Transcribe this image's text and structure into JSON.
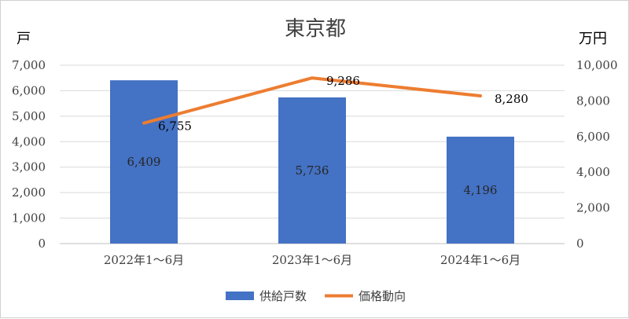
{
  "chart_data": {
    "type": "bar+line",
    "title": "東京都",
    "left_axis_unit": "戸",
    "right_axis_unit": "万円",
    "categories": [
      "2022年1～6月",
      "2023年1～6月",
      "2024年1～6月"
    ],
    "left_ylim": [
      0,
      7000
    ],
    "left_ticks": [
      "7,000",
      "6,000",
      "5,000",
      "4,000",
      "3,000",
      "2,000",
      "1,000",
      "0"
    ],
    "right_ylim": [
      0,
      10000
    ],
    "right_ticks": [
      "10,000",
      "8,000",
      "6,000",
      "4,000",
      "2,000",
      "0"
    ],
    "series": [
      {
        "name": "供給戸数",
        "type": "bar",
        "axis": "left",
        "color": "#4472C4",
        "values": [
          6409,
          5736,
          4196
        ],
        "labels": [
          "6,409",
          "5,736",
          "4,196"
        ]
      },
      {
        "name": "価格動向",
        "type": "line",
        "axis": "right",
        "color": "#ED7D31",
        "values": [
          6755,
          9286,
          8280
        ],
        "labels": [
          "6,755",
          "9,286",
          "8,280"
        ]
      }
    ],
    "grid": true,
    "legend_position": "bottom"
  }
}
